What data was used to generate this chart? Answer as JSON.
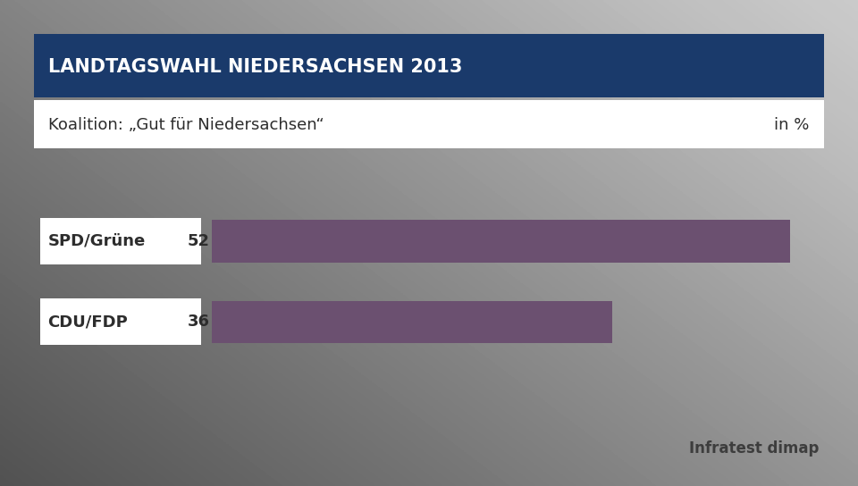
{
  "title": "LANDTAGSWAHL NIEDERSACHSEN 2013",
  "subtitle": "Koalition: „Gut für Niedersachsen“",
  "subtitle_right": "in %",
  "title_bg_color": "#1a3a6b",
  "title_text_color": "#ffffff",
  "subtitle_text_color": "#2d2d2d",
  "categories": [
    "SPD/Grüne",
    "CDU/FDP"
  ],
  "values": [
    52,
    36
  ],
  "max_value": 55,
  "bar_color": "#6b5070",
  "label_color": "#2d2d2d",
  "bg_color": "#d0d0c8",
  "source": "Infratest dimap",
  "source_color": "#3d3d3d",
  "title_fontsize": 15,
  "subtitle_fontsize": 13,
  "label_fontsize": 13,
  "value_fontsize": 13,
  "source_fontsize": 12
}
